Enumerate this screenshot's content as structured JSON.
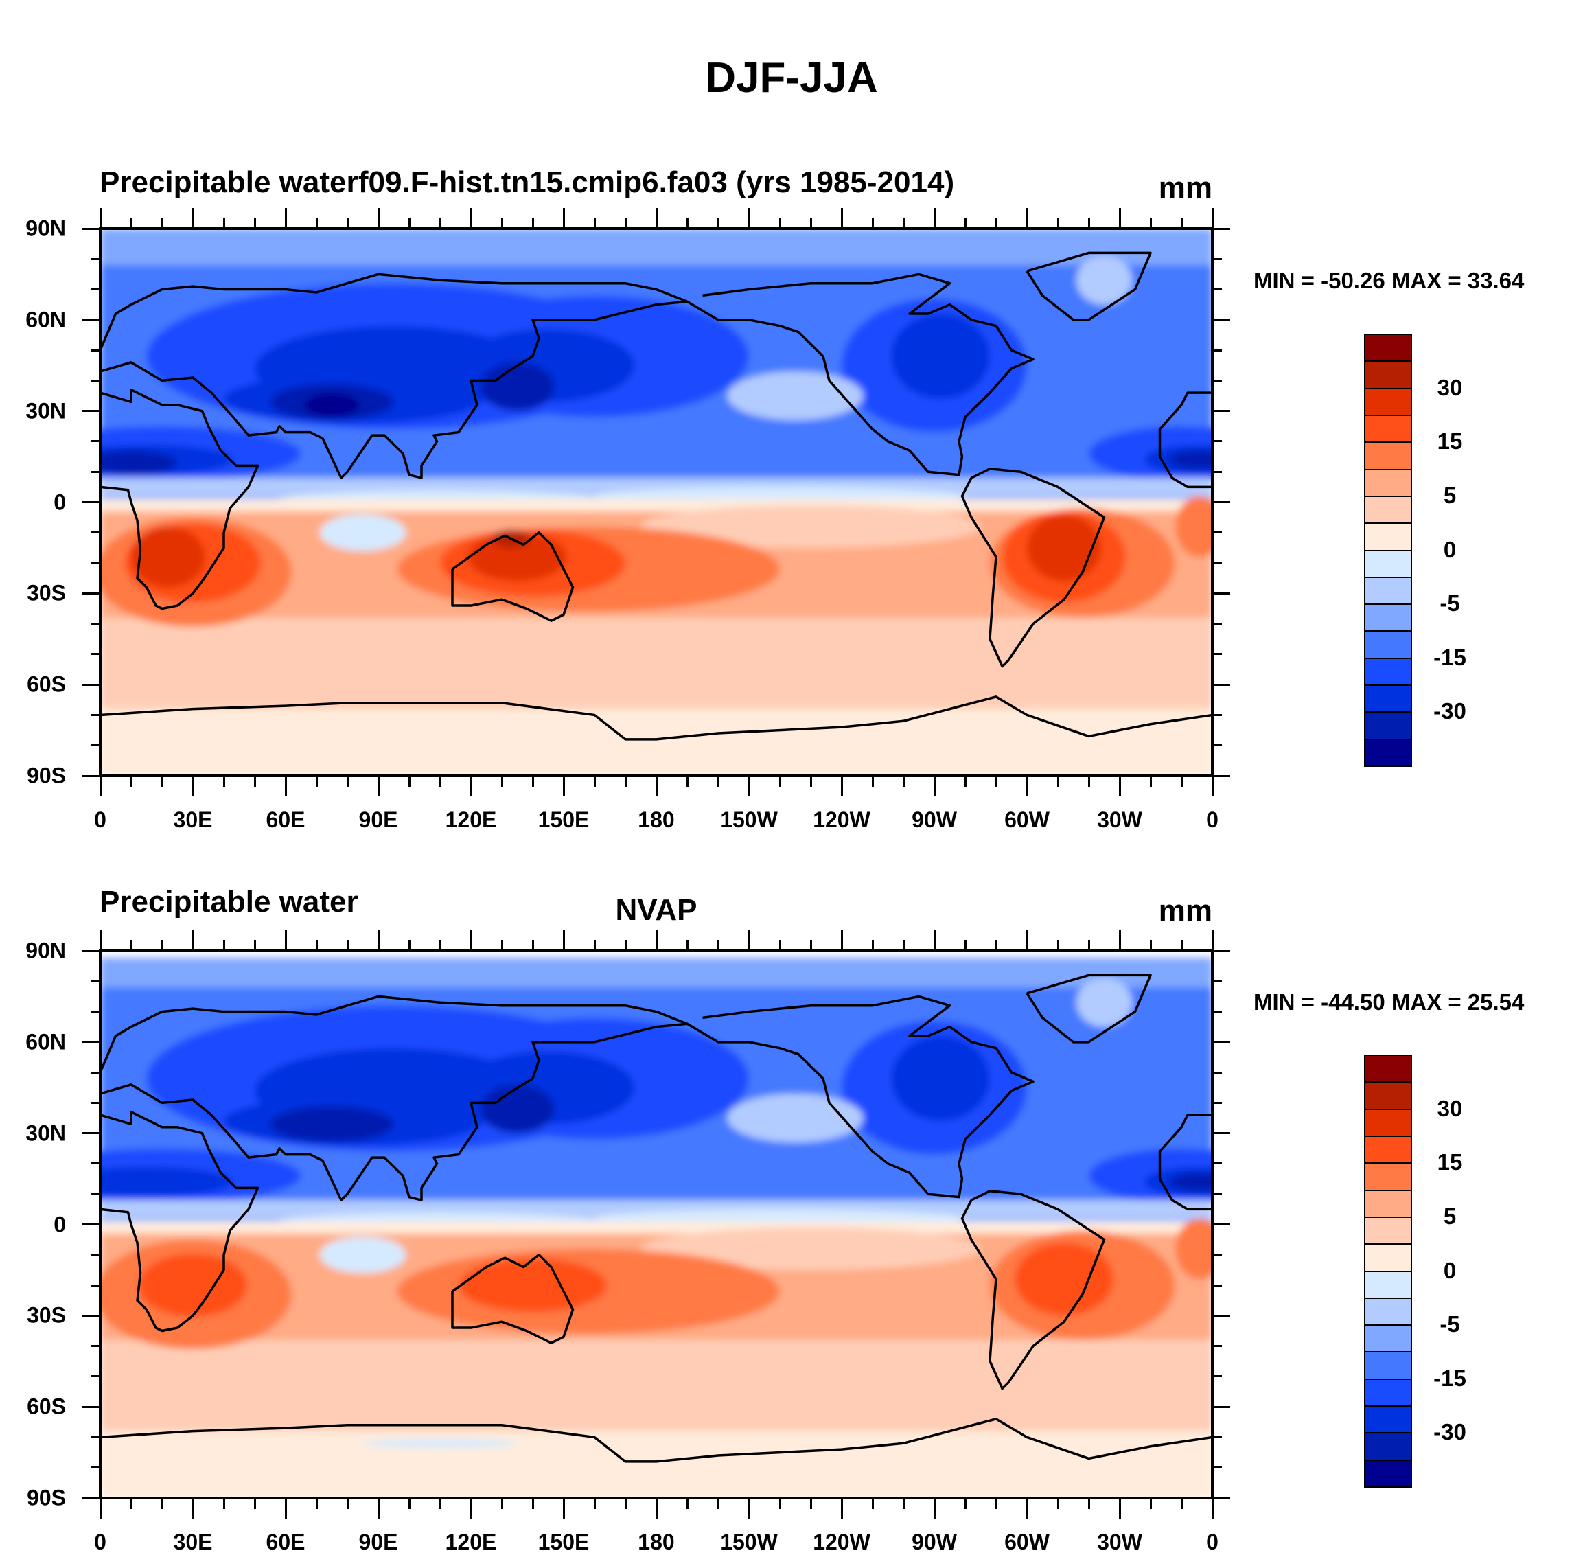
{
  "title": "DJF-JJA",
  "panels": [
    {
      "left_title": "Precipitable water",
      "center_title": "f09.F-hist.tn15.cmip6.fa03 (yrs 1985-2014)",
      "units": "mm",
      "minmax": "MIN = -50.26 MAX =  33.64"
    },
    {
      "left_title": "Precipitable water",
      "center_title": "NVAP",
      "units": "mm",
      "minmax": "MIN = -44.50 MAX =  25.54"
    }
  ],
  "axes": {
    "lat_labels": [
      "90N",
      "60N",
      "30N",
      "0",
      "30S",
      "60S",
      "90S"
    ],
    "lon_labels": [
      "0",
      "30E",
      "60E",
      "90E",
      "120E",
      "150E",
      "180",
      "150W",
      "120W",
      "90W",
      "60W",
      "30W",
      "0"
    ]
  },
  "colorbar": {
    "levels": [
      -40,
      -30,
      -20,
      -15,
      -10,
      -5,
      -2,
      0,
      2,
      5,
      10,
      15,
      20,
      30,
      40
    ],
    "labels": [
      "-30",
      "-15",
      "-5",
      "0",
      "5",
      "15",
      "30"
    ],
    "colors": [
      "#000090",
      "#001eb0",
      "#0033e0",
      "#1a4cff",
      "#4479ff",
      "#80a8ff",
      "#b3ccff",
      "#d6eaff",
      "#ffecdc",
      "#ffcdb5",
      "#ffab85",
      "#ff7a45",
      "#ff5019",
      "#e33200",
      "#b52000",
      "#8b0000"
    ]
  },
  "chart_data": [
    {
      "type": "heatmap",
      "title": "f09.F-hist.tn15.cmip6.fa03 (yrs 1985-2014)",
      "variable": "Precipitable water",
      "units": "mm",
      "season_difference": "DJF-JJA",
      "min": -50.26,
      "max": 33.64,
      "xlim": [
        0,
        360
      ],
      "ylim": [
        -90,
        90
      ],
      "contour_levels": [
        -40,
        -30,
        -20,
        -15,
        -10,
        -5,
        -2,
        0,
        2,
        5,
        10,
        15,
        20,
        30,
        40
      ]
    },
    {
      "type": "heatmap",
      "title": "NVAP",
      "variable": "Precipitable water",
      "units": "mm",
      "season_difference": "DJF-JJA",
      "min": -44.5,
      "max": 25.54,
      "xlim": [
        0,
        360
      ],
      "ylim": [
        -90,
        90
      ],
      "contour_levels": [
        -40,
        -30,
        -20,
        -15,
        -10,
        -5,
        -2,
        0,
        2,
        5,
        10,
        15,
        20,
        30,
        40
      ]
    }
  ]
}
